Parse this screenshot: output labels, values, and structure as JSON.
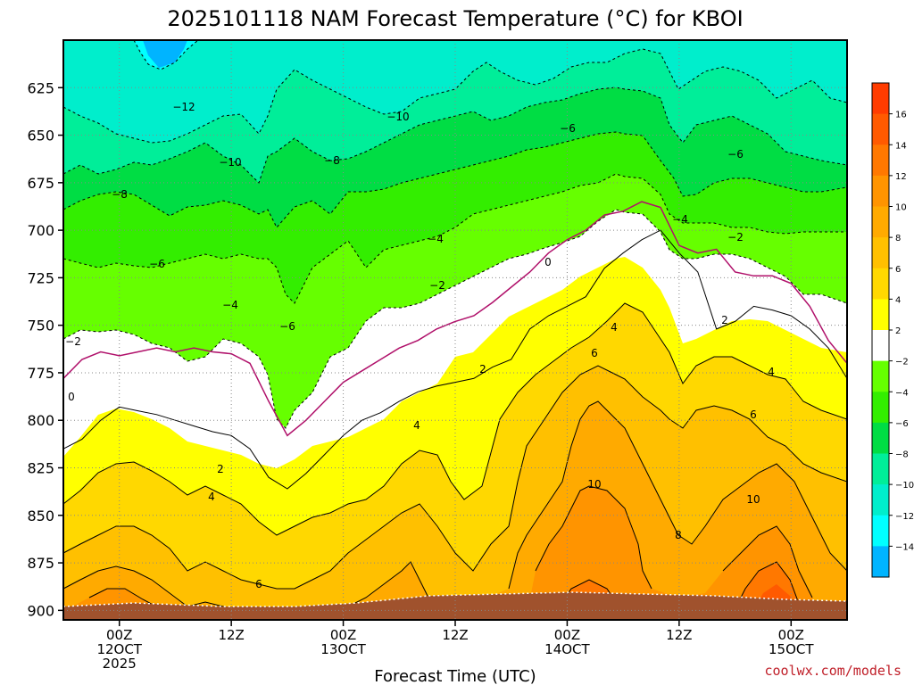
{
  "chart_data": {
    "type": "heatmap",
    "title": "2025101118 NAM Forecast Temperature (°C) for KBOI",
    "xlabel": "Forecast Time (UTC)",
    "ylabel": "",
    "ylim": [
      600,
      905
    ],
    "y_ticks": [
      625,
      650,
      675,
      700,
      725,
      750,
      775,
      800,
      825,
      850,
      875,
      900
    ],
    "x_ticks": [
      {
        "hour": 6,
        "line1": "00Z",
        "line2": "12OCT",
        "line3": "2025"
      },
      {
        "hour": 18,
        "line1": "12Z",
        "line2": "",
        "line3": ""
      },
      {
        "hour": 30,
        "line1": "00Z",
        "line2": "13OCT",
        "line3": ""
      },
      {
        "hour": 42,
        "line1": "12Z",
        "line2": "",
        "line3": ""
      },
      {
        "hour": 54,
        "line1": "00Z",
        "line2": "14OCT",
        "line3": ""
      },
      {
        "hour": 66,
        "line1": "12Z",
        "line2": "",
        "line3": ""
      },
      {
        "hour": 78,
        "line1": "00Z",
        "line2": "15OCT",
        "line3": ""
      }
    ],
    "xlim_hours": [
      0,
      84
    ],
    "levels": [
      -16,
      -14,
      -12,
      -10,
      -8,
      -6,
      -4,
      -2,
      2,
      4,
      6,
      8,
      10,
      12,
      14,
      16
    ],
    "colorbar_ticks": [
      "16",
      "14",
      "12",
      "10",
      "8",
      "6",
      "4",
      "2",
      "−2",
      "−4",
      "−6",
      "−8",
      "−10",
      "−12",
      "−14"
    ],
    "colorbar_colors": [
      "#ff3c00",
      "#ff5a00",
      "#ff7800",
      "#ff9400",
      "#ffaa00",
      "#ffc000",
      "#ffd800",
      "#ffff00",
      "#ffffff",
      "#66ff00",
      "#33ee00",
      "#00dd44",
      "#00ee99",
      "#00eecc",
      "#00ffff",
      "#00b4ff"
    ],
    "series": [
      {
        "temp": 0,
        "hours": [
          0,
          2,
          4,
          6,
          8,
          10,
          12,
          14,
          16,
          18,
          20,
          22,
          24,
          26,
          28,
          30,
          32,
          34,
          36,
          38,
          40,
          42,
          44,
          46,
          48,
          50,
          52,
          54,
          56,
          58,
          60,
          62,
          64,
          66,
          68,
          70,
          72,
          74,
          76,
          78,
          80,
          82,
          84
        ],
        "pressure": [
          778,
          768,
          764,
          766,
          764,
          762,
          764,
          762,
          764,
          765,
          770,
          790,
          808,
          800,
          790,
          780,
          774,
          768,
          762,
          758,
          752,
          748,
          745,
          738,
          730,
          722,
          712,
          705,
          700,
          692,
          690,
          685,
          688,
          708,
          712,
          710,
          722,
          724,
          724,
          728,
          740,
          758,
          770
        ]
      },
      {
        "temp": 2,
        "hours": [
          0,
          2,
          4,
          6,
          8,
          10,
          12,
          14,
          16,
          18,
          20,
          22,
          24,
          26,
          28,
          30,
          32,
          34,
          36,
          38,
          40,
          42,
          44,
          46,
          48,
          50,
          52,
          54,
          56,
          58,
          60,
          62,
          64,
          66,
          68,
          70,
          72,
          74,
          76,
          78,
          80,
          82,
          84
        ],
        "pressure": [
          815,
          810,
          800,
          793,
          795,
          797,
          800,
          803,
          806,
          808,
          815,
          830,
          836,
          828,
          818,
          808,
          800,
          796,
          790,
          785,
          782,
          780,
          778,
          772,
          768,
          752,
          745,
          740,
          735,
          720,
          712,
          705,
          700,
          712,
          722,
          752,
          748,
          740,
          742,
          745,
          752,
          762,
          778
        ]
      }
    ]
  }
}
